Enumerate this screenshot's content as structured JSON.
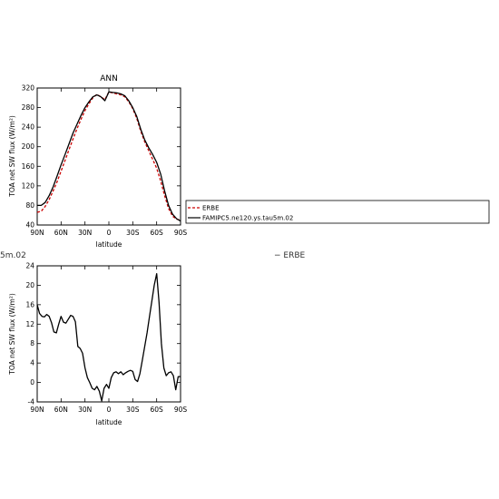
{
  "chart_data": [
    {
      "type": "line",
      "title": "ANN",
      "xlabel": "latitude",
      "ylabel": "TOA net SW flux (W/m²)",
      "xlim": [
        90,
        -90
      ],
      "ylim": [
        40,
        320
      ],
      "xticks": [
        90,
        60,
        30,
        0,
        -30,
        -60,
        -90
      ],
      "xtick_labels": [
        "90N",
        "60N",
        "30N",
        "0",
        "30S",
        "60S",
        "90S"
      ],
      "yticks": [
        40,
        80,
        120,
        160,
        200,
        240,
        280,
        320
      ],
      "ytick_labels": [
        "40",
        "80",
        "120",
        "160",
        "200",
        "240",
        "280",
        "320"
      ],
      "legend_position": "right, outside plot",
      "series": [
        {
          "name": "ERBE",
          "color": "#cc0000",
          "style": "dashed",
          "x": [
            90,
            85,
            80,
            75,
            70,
            65,
            60,
            55,
            50,
            45,
            40,
            35,
            30,
            25,
            20,
            15,
            10,
            5,
            0,
            -5,
            -10,
            -15,
            -20,
            -25,
            -30,
            -35,
            -40,
            -45,
            -50,
            -55,
            -60,
            -65,
            -70,
            -75,
            -80,
            -85,
            -90
          ],
          "values": [
            66,
            68,
            78,
            92,
            110,
            128,
            150,
            172,
            194,
            216,
            237,
            256,
            274,
            288,
            300,
            307,
            302,
            296,
            312,
            310,
            308,
            306,
            302,
            292,
            278,
            258,
            232,
            210,
            192,
            174,
            156,
            130,
            100,
            74,
            58,
            52,
            50
          ]
        },
        {
          "name": "FAMIPC5.ne120.ys.tau5m.02",
          "color": "#000000",
          "style": "solid",
          "x": [
            90,
            85,
            80,
            75,
            70,
            65,
            60,
            55,
            50,
            45,
            40,
            35,
            30,
            25,
            20,
            15,
            10,
            5,
            0,
            -5,
            -10,
            -15,
            -20,
            -25,
            -30,
            -35,
            -40,
            -45,
            -50,
            -55,
            -60,
            -65,
            -70,
            -75,
            -80,
            -85,
            -90
          ],
          "values": [
            80,
            80,
            86,
            100,
            118,
            140,
            163,
            184,
            206,
            228,
            246,
            264,
            280,
            292,
            302,
            306,
            302,
            294,
            312,
            311,
            310,
            308,
            304,
            294,
            280,
            262,
            236,
            214,
            198,
            184,
            168,
            144,
            110,
            80,
            62,
            53,
            48
          ]
        }
      ]
    },
    {
      "type": "line",
      "title": "",
      "xlabel": "latitude",
      "ylabel": "TOA net SW flux (W/m²)",
      "xlim": [
        90,
        -90
      ],
      "ylim": [
        -4,
        24
      ],
      "xticks": [
        90,
        60,
        30,
        0,
        -30,
        -60,
        -90
      ],
      "xtick_labels": [
        "90N",
        "60N",
        "30N",
        "0",
        "30S",
        "60S",
        "90S"
      ],
      "yticks": [
        -4,
        0,
        4,
        8,
        12,
        16,
        20,
        24
      ],
      "ytick_labels": [
        "-4",
        "0",
        "4",
        "8",
        "12",
        "16",
        "20",
        "24"
      ],
      "series": [
        {
          "color": "#000000",
          "style": "solid",
          "x": [
            90,
            87,
            84,
            81,
            78,
            75,
            72,
            69,
            66,
            63,
            60,
            57,
            54,
            51,
            48,
            45,
            42,
            39,
            36,
            33,
            30,
            27,
            24,
            21,
            18,
            15,
            12,
            9,
            6,
            3,
            0,
            -3,
            -6,
            -9,
            -12,
            -15,
            -18,
            -21,
            -24,
            -27,
            -30,
            -33,
            -36,
            -39,
            -42,
            -45,
            -48,
            -51,
            -54,
            -57,
            -60,
            -63,
            -66,
            -69,
            -72,
            -75,
            -78,
            -81,
            -84,
            -87,
            -90
          ],
          "values": [
            16,
            14.2,
            13.6,
            13.5,
            14.0,
            13.6,
            12.3,
            10.4,
            10.2,
            12.0,
            13.6,
            12.4,
            12.2,
            13.0,
            13.8,
            13.6,
            12.5,
            7.4,
            7.0,
            6.0,
            3.0,
            1.0,
            0.0,
            -1.2,
            -1.5,
            -0.8,
            -1.8,
            -3.8,
            -1.2,
            -0.4,
            -1.2,
            1.0,
            2.0,
            2.2,
            1.8,
            2.2,
            1.6,
            2.0,
            2.3,
            2.5,
            2.3,
            0.6,
            0.2,
            1.8,
            4.6,
            7.4,
            10.2,
            13.6,
            16.8,
            20.0,
            22.4,
            16.5,
            8.0,
            3.0,
            1.4,
            2.0,
            2.2,
            1.4,
            -1.5,
            1.2,
            1.2
          ]
        }
      ]
    }
  ],
  "legend": {
    "items": [
      {
        "label": "ERBE",
        "color": "#cc0000",
        "style": "dashed"
      },
      {
        "label": "FAMIPC5.ne120.ys.tau5m.02",
        "color": "#000000",
        "style": "solid"
      }
    ]
  },
  "stray_text": {
    "left": "5m.02",
    "right": "− ERBE"
  }
}
